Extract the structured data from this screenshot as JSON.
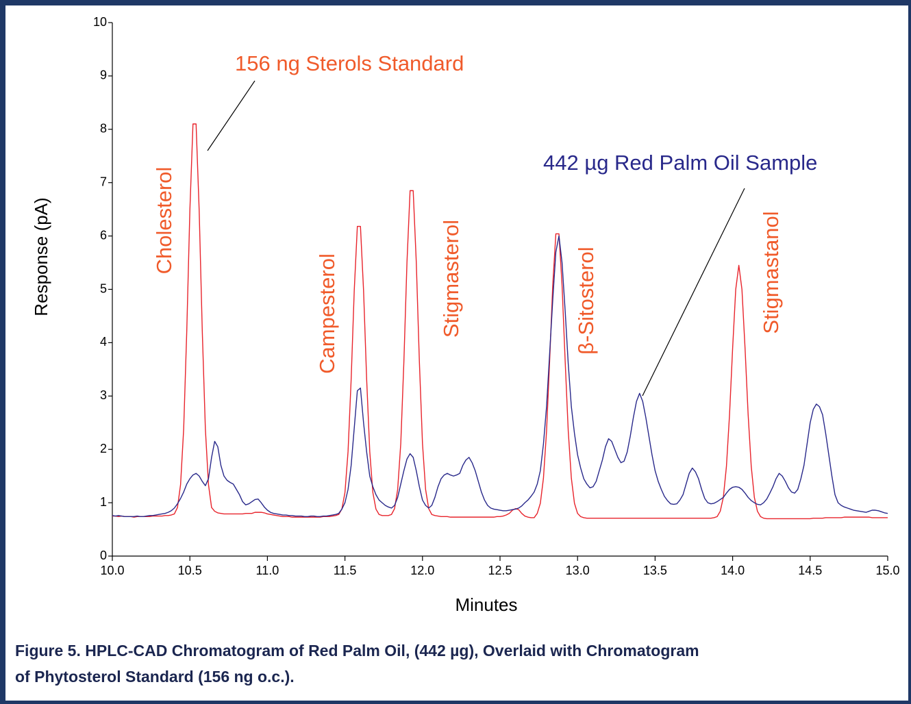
{
  "chart_data": {
    "type": "line",
    "y_label": "Response (pA)",
    "x_label": "Minutes",
    "caption": [
      "Figure 5. HPLC-CAD Chromatogram of Red Palm Oil, (442 µg), Overlaid with Chromatogram",
      "of Phytosterol Standard (156 ng o.c.)."
    ],
    "peak_labels": [
      "Cholesterol",
      "Campesterol",
      "Stigmasterol",
      "β-Sitosterol",
      "Stigmastanol"
    ],
    "xlim": [
      10,
      15
    ],
    "ylim": [
      0,
      10
    ],
    "xticks": [
      {
        "value": 10,
        "label": "10.0"
      },
      {
        "value": 10.5,
        "label": "10.5"
      },
      {
        "value": 11,
        "label": "11.0"
      },
      {
        "value": 11.5,
        "label": "11.5"
      },
      {
        "value": 12,
        "label": "12.0"
      },
      {
        "value": 12.5,
        "label": "12.5"
      },
      {
        "value": 13,
        "label": "13.0"
      },
      {
        "value": 13.5,
        "label": "13.5"
      },
      {
        "value": 14,
        "label": "14.0"
      },
      {
        "value": 14.5,
        "label": "14.5"
      },
      {
        "value": 15,
        "label": "15.0"
      }
    ],
    "yticks": [
      0,
      1,
      2,
      3,
      4,
      5,
      6,
      7,
      8,
      9,
      10
    ],
    "x": [
      10,
      10.02,
      10.04,
      10.06,
      10.08,
      10.1,
      10.12,
      10.14,
      10.16,
      10.18,
      10.2,
      10.22,
      10.24,
      10.26,
      10.28,
      10.3,
      10.32,
      10.34,
      10.36,
      10.38,
      10.4,
      10.42,
      10.44,
      10.46,
      10.48,
      10.5,
      10.52,
      10.54,
      10.56,
      10.58,
      10.6,
      10.62,
      10.64,
      10.66,
      10.68,
      10.7,
      10.72,
      10.74,
      10.76,
      10.78,
      10.8,
      10.82,
      10.84,
      10.86,
      10.88,
      10.9,
      10.92,
      10.94,
      10.96,
      10.98,
      11,
      11.02,
      11.04,
      11.06,
      11.08,
      11.1,
      11.12,
      11.14,
      11.16,
      11.18,
      11.2,
      11.22,
      11.24,
      11.26,
      11.28,
      11.3,
      11.32,
      11.34,
      11.36,
      11.38,
      11.4,
      11.42,
      11.44,
      11.46,
      11.48,
      11.5,
      11.52,
      11.54,
      11.56,
      11.58,
      11.6,
      11.62,
      11.64,
      11.66,
      11.68,
      11.7,
      11.72,
      11.74,
      11.76,
      11.78,
      11.8,
      11.82,
      11.84,
      11.86,
      11.88,
      11.9,
      11.92,
      11.94,
      11.96,
      11.98,
      12,
      12.02,
      12.04,
      12.06,
      12.08,
      12.1,
      12.12,
      12.14,
      12.16,
      12.18,
      12.2,
      12.22,
      12.24,
      12.26,
      12.28,
      12.3,
      12.32,
      12.34,
      12.36,
      12.38,
      12.4,
      12.42,
      12.44,
      12.46,
      12.48,
      12.5,
      12.52,
      12.54,
      12.56,
      12.58,
      12.6,
      12.62,
      12.64,
      12.66,
      12.68,
      12.7,
      12.72,
      12.74,
      12.76,
      12.78,
      12.8,
      12.82,
      12.84,
      12.86,
      12.88,
      12.9,
      12.92,
      12.94,
      12.96,
      12.98,
      13,
      13.02,
      13.04,
      13.06,
      13.08,
      13.1,
      13.12,
      13.14,
      13.16,
      13.18,
      13.2,
      13.22,
      13.24,
      13.26,
      13.28,
      13.3,
      13.32,
      13.34,
      13.36,
      13.38,
      13.4,
      13.42,
      13.44,
      13.46,
      13.48,
      13.5,
      13.52,
      13.54,
      13.56,
      13.58,
      13.6,
      13.62,
      13.64,
      13.66,
      13.68,
      13.7,
      13.72,
      13.74,
      13.76,
      13.78,
      13.8,
      13.82,
      13.84,
      13.86,
      13.88,
      13.9,
      13.92,
      13.94,
      13.96,
      13.98,
      14,
      14.02,
      14.04,
      14.06,
      14.08,
      14.1,
      14.12,
      14.14,
      14.16,
      14.18,
      14.2,
      14.22,
      14.24,
      14.26,
      14.28,
      14.3,
      14.32,
      14.34,
      14.36,
      14.38,
      14.4,
      14.42,
      14.44,
      14.46,
      14.48,
      14.5,
      14.52,
      14.54,
      14.56,
      14.58,
      14.6,
      14.62,
      14.64,
      14.66,
      14.68,
      14.7,
      14.72,
      14.74,
      14.76,
      14.78,
      14.8,
      14.82,
      14.84,
      14.86,
      14.88,
      14.9,
      14.92,
      14.94,
      14.96,
      14.98,
      15
    ],
    "series": [
      {
        "name": "156 ng Sterols Standard",
        "color": "#e8232b",
        "label_color": "#f05a2a",
        "values": [
          0.75,
          0.75,
          0.74,
          0.75,
          0.74,
          0.74,
          0.74,
          0.73,
          0.74,
          0.74,
          0.74,
          0.74,
          0.74,
          0.75,
          0.75,
          0.75,
          0.75,
          0.76,
          0.76,
          0.77,
          0.79,
          0.91,
          1.34,
          2.38,
          4.22,
          6.48,
          8.1,
          8.1,
          6.48,
          4.22,
          2.38,
          1.34,
          0.91,
          0.84,
          0.81,
          0.8,
          0.79,
          0.79,
          0.79,
          0.79,
          0.79,
          0.79,
          0.79,
          0.8,
          0.8,
          0.8,
          0.82,
          0.82,
          0.82,
          0.81,
          0.79,
          0.78,
          0.77,
          0.76,
          0.75,
          0.74,
          0.74,
          0.74,
          0.73,
          0.73,
          0.73,
          0.73,
          0.73,
          0.73,
          0.73,
          0.73,
          0.73,
          0.73,
          0.74,
          0.74,
          0.74,
          0.75,
          0.76,
          0.78,
          0.88,
          1.19,
          1.96,
          3.31,
          4.98,
          6.18,
          6.18,
          4.98,
          3.31,
          1.96,
          1.19,
          0.88,
          0.78,
          0.76,
          0.76,
          0.76,
          0.78,
          0.89,
          1.25,
          2.11,
          3.64,
          5.51,
          6.85,
          6.85,
          5.51,
          3.64,
          2.11,
          1.25,
          0.89,
          0.78,
          0.76,
          0.75,
          0.74,
          0.74,
          0.74,
          0.73,
          0.73,
          0.73,
          0.73,
          0.73,
          0.73,
          0.73,
          0.73,
          0.73,
          0.73,
          0.73,
          0.73,
          0.73,
          0.73,
          0.73,
          0.74,
          0.74,
          0.75,
          0.77,
          0.8,
          0.86,
          0.89,
          0.87,
          0.8,
          0.75,
          0.73,
          0.72,
          0.72,
          0.8,
          0.99,
          1.46,
          2.34,
          3.66,
          5.08,
          6.04,
          6.04,
          5.08,
          3.66,
          2.34,
          1.46,
          0.99,
          0.8,
          0.74,
          0.72,
          0.71,
          0.71,
          0.71,
          0.71,
          0.71,
          0.71,
          0.71,
          0.71,
          0.71,
          0.71,
          0.71,
          0.71,
          0.71,
          0.71,
          0.71,
          0.71,
          0.71,
          0.71,
          0.71,
          0.71,
          0.71,
          0.71,
          0.71,
          0.71,
          0.71,
          0.71,
          0.71,
          0.71,
          0.71,
          0.71,
          0.71,
          0.71,
          0.71,
          0.71,
          0.71,
          0.71,
          0.71,
          0.71,
          0.71,
          0.71,
          0.71,
          0.72,
          0.74,
          0.84,
          1.1,
          1.68,
          2.65,
          3.9,
          5.0,
          5.45,
          5.0,
          3.9,
          2.65,
          1.68,
          1.1,
          0.84,
          0.74,
          0.71,
          0.7,
          0.7,
          0.7,
          0.7,
          0.7,
          0.7,
          0.7,
          0.7,
          0.7,
          0.7,
          0.7,
          0.7,
          0.7,
          0.7,
          0.7,
          0.71,
          0.71,
          0.71,
          0.71,
          0.72,
          0.72,
          0.72,
          0.72,
          0.72,
          0.72,
          0.73,
          0.73,
          0.73,
          0.73,
          0.73,
          0.73,
          0.73,
          0.73,
          0.73,
          0.72,
          0.72,
          0.72,
          0.72,
          0.72,
          0.72
        ]
      },
      {
        "name": "442 µg Red Palm Oil Sample",
        "color": "#28288a",
        "label_color": "#28288a",
        "values": [
          0.76,
          0.75,
          0.76,
          0.75,
          0.74,
          0.74,
          0.74,
          0.74,
          0.75,
          0.74,
          0.74,
          0.75,
          0.76,
          0.76,
          0.77,
          0.78,
          0.79,
          0.8,
          0.82,
          0.85,
          0.9,
          0.98,
          1.08,
          1.2,
          1.35,
          1.45,
          1.52,
          1.55,
          1.5,
          1.4,
          1.32,
          1.45,
          1.85,
          2.15,
          2.05,
          1.7,
          1.5,
          1.42,
          1.38,
          1.35,
          1.25,
          1.15,
          1.02,
          0.96,
          0.98,
          1.02,
          1.06,
          1.07,
          1.0,
          0.92,
          0.86,
          0.82,
          0.8,
          0.79,
          0.78,
          0.77,
          0.77,
          0.76,
          0.76,
          0.75,
          0.75,
          0.75,
          0.74,
          0.74,
          0.75,
          0.75,
          0.74,
          0.74,
          0.75,
          0.75,
          0.76,
          0.77,
          0.78,
          0.8,
          0.88,
          1.0,
          1.25,
          1.7,
          2.4,
          3.1,
          3.15,
          2.5,
          1.95,
          1.5,
          1.3,
          1.15,
          1.05,
          1.0,
          0.95,
          0.92,
          0.9,
          0.95,
          1.1,
          1.35,
          1.6,
          1.82,
          1.92,
          1.85,
          1.6,
          1.3,
          1.05,
          0.95,
          0.9,
          0.95,
          1.1,
          1.3,
          1.45,
          1.52,
          1.55,
          1.52,
          1.5,
          1.52,
          1.55,
          1.7,
          1.8,
          1.85,
          1.75,
          1.6,
          1.4,
          1.2,
          1.05,
          0.95,
          0.9,
          0.88,
          0.87,
          0.86,
          0.85,
          0.85,
          0.86,
          0.87,
          0.88,
          0.9,
          0.94,
          1.0,
          1.05,
          1.12,
          1.2,
          1.35,
          1.6,
          2.1,
          2.8,
          3.8,
          4.8,
          5.7,
          6.0,
          5.5,
          4.6,
          3.6,
          2.8,
          2.3,
          1.9,
          1.65,
          1.45,
          1.35,
          1.28,
          1.3,
          1.4,
          1.6,
          1.8,
          2.05,
          2.2,
          2.15,
          2.0,
          1.85,
          1.75,
          1.78,
          1.95,
          2.25,
          2.6,
          2.9,
          3.05,
          2.9,
          2.6,
          2.25,
          1.9,
          1.6,
          1.4,
          1.25,
          1.12,
          1.04,
          0.98,
          0.97,
          0.98,
          1.05,
          1.15,
          1.35,
          1.55,
          1.65,
          1.58,
          1.45,
          1.25,
          1.08,
          1.0,
          0.98,
          0.99,
          1.02,
          1.06,
          1.1,
          1.18,
          1.25,
          1.29,
          1.3,
          1.29,
          1.25,
          1.18,
          1.1,
          1.04,
          1.0,
          0.97,
          0.96,
          1.0,
          1.07,
          1.18,
          1.3,
          1.45,
          1.55,
          1.5,
          1.4,
          1.28,
          1.2,
          1.18,
          1.25,
          1.45,
          1.7,
          2.1,
          2.5,
          2.75,
          2.85,
          2.8,
          2.65,
          2.3,
          1.9,
          1.5,
          1.15,
          1.0,
          0.95,
          0.92,
          0.9,
          0.88,
          0.86,
          0.85,
          0.84,
          0.83,
          0.82,
          0.84,
          0.86,
          0.86,
          0.85,
          0.83,
          0.81,
          0.8
        ]
      }
    ]
  }
}
